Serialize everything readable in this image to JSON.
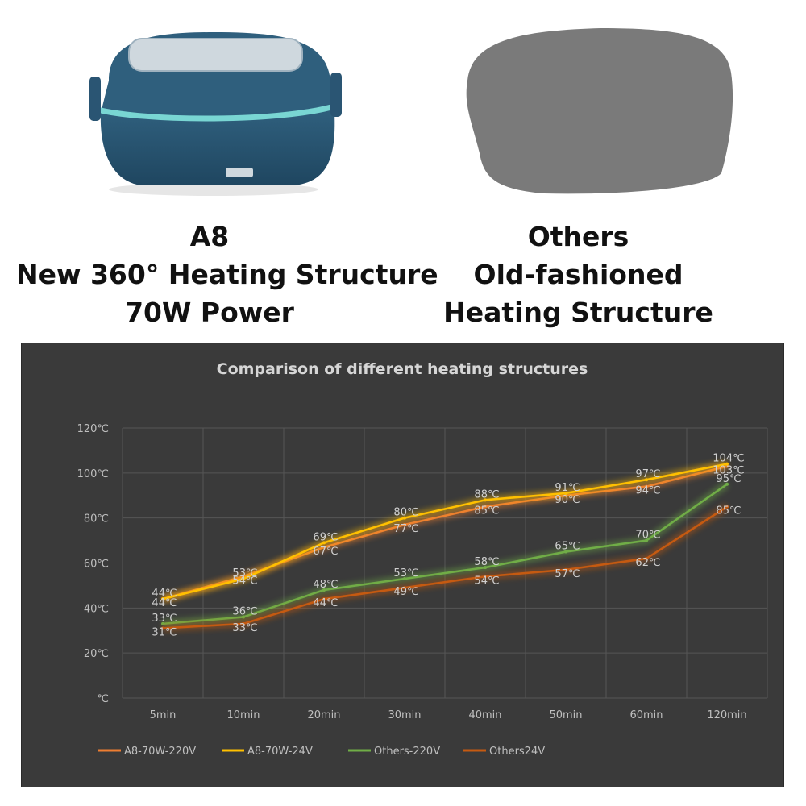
{
  "products": {
    "a8": {
      "name": "A8",
      "line1": "New 360° Heating Structure",
      "line2": "70W Power",
      "body_color": "#2f5f7d",
      "trim_color": "#79d6d3"
    },
    "others": {
      "name": "Others",
      "line1": "Old-fashioned",
      "line2": "Heating Structure",
      "silhouette_color": "#7a7a7a"
    }
  },
  "chart_data": {
    "type": "line",
    "title": "Comparison of different heating structures",
    "categories": [
      "5min",
      "10min",
      "20min",
      "30min",
      "40min",
      "50min",
      "60min",
      "120min"
    ],
    "ylim": [
      0,
      120
    ],
    "yticks": [
      "℃",
      "20℃",
      "40℃",
      "60℃",
      "80℃",
      "100℃",
      "120℃"
    ],
    "unit": "℃",
    "grid": true,
    "legend_position": "bottom",
    "series": [
      {
        "name": "A8-70W-220V",
        "color": "#ed7d31",
        "values": [
          44,
          54,
          67,
          77,
          85,
          90,
          94,
          103
        ]
      },
      {
        "name": "A8-70W-24V",
        "color": "#ffc000",
        "values": [
          44,
          53,
          69,
          80,
          88,
          91,
          97,
          104
        ]
      },
      {
        "name": "Others-220V",
        "color": "#70ad47",
        "values": [
          33,
          36,
          48,
          53,
          58,
          65,
          70,
          95
        ]
      },
      {
        "name": "Others24V",
        "color": "#c55a11",
        "values": [
          31,
          33,
          44,
          49,
          54,
          57,
          62,
          85
        ]
      }
    ]
  }
}
